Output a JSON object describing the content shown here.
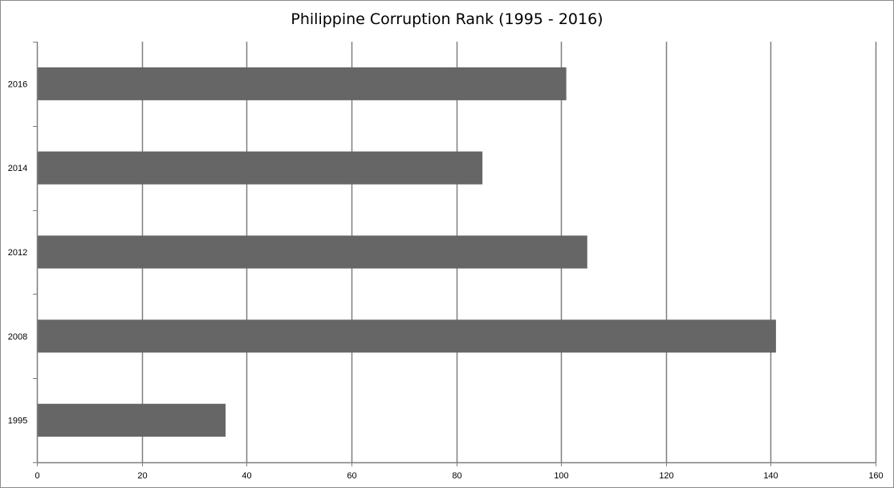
{
  "chart_data": {
    "type": "bar",
    "orientation": "horizontal",
    "title": "Philippine Corruption Rank (1995 - 2016)",
    "xlabel": "",
    "ylabel": "",
    "categories": [
      "1995",
      "2008",
      "2012",
      "2014",
      "2016"
    ],
    "values": [
      36,
      141,
      105,
      85,
      101
    ],
    "xlim": [
      0,
      160
    ],
    "xticks": [
      0,
      20,
      40,
      60,
      80,
      100,
      120,
      140,
      160
    ],
    "grid": "vertical major gridlines",
    "legend": "none",
    "bar_color": "#666666",
    "grid_color": "#7f7f7f"
  }
}
